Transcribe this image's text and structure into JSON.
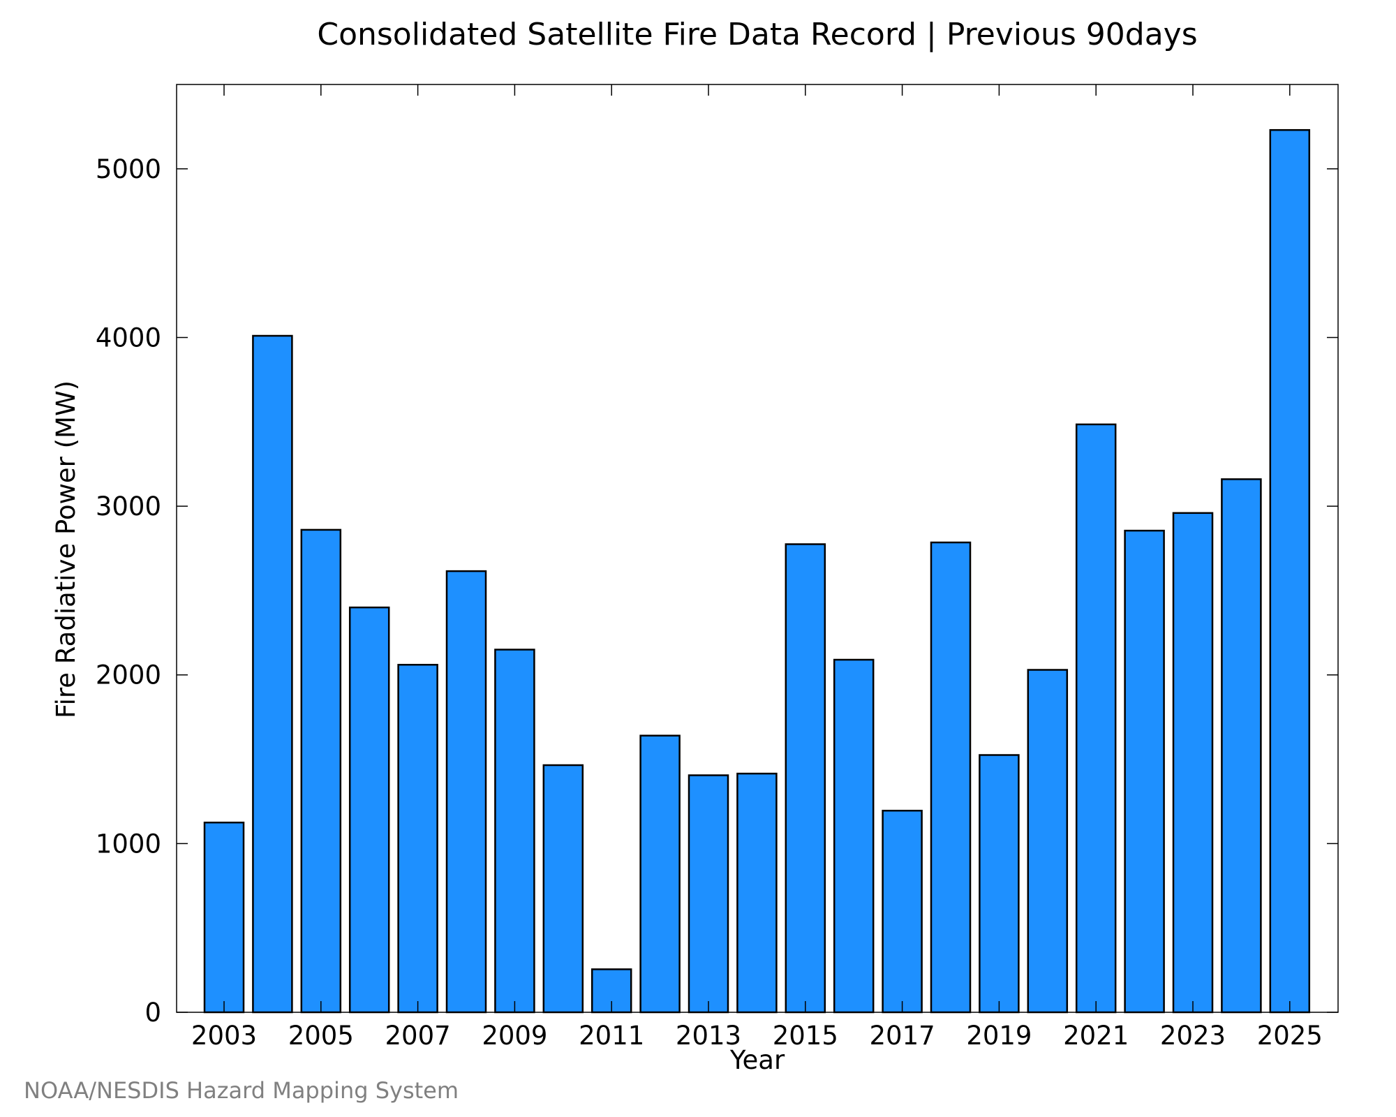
{
  "chart_data": {
    "type": "bar",
    "title": "Consolidated Satellite Fire Data Record | Previous 90days",
    "xlabel": "Year",
    "ylabel": "Fire Radiative Power (MW)",
    "categories": [
      "2003",
      "2004",
      "2005",
      "2006",
      "2007",
      "2008",
      "2009",
      "2010",
      "2011",
      "2012",
      "2013",
      "2014",
      "2015",
      "2016",
      "2017",
      "2018",
      "2019",
      "2020",
      "2021",
      "2022",
      "2023",
      "2024",
      "2025"
    ],
    "values": [
      1125,
      4010,
      2860,
      2400,
      2060,
      2615,
      2150,
      1465,
      255,
      1640,
      1405,
      1415,
      2775,
      2090,
      1195,
      2785,
      1525,
      2030,
      3485,
      2855,
      2960,
      3160,
      5230
    ],
    "x_tick_labels": [
      "2003",
      "2005",
      "2007",
      "2009",
      "2011",
      "2013",
      "2015",
      "2017",
      "2019",
      "2021",
      "2023",
      "2025"
    ],
    "y_ticks": [
      0,
      1000,
      2000,
      3000,
      4000,
      5000
    ],
    "ylim": [
      0,
      5500
    ],
    "grid": false,
    "bar_color": "#1e90ff",
    "bar_edge_color": "#000000",
    "source": "NOAA/NESDIS Hazard Mapping System"
  }
}
